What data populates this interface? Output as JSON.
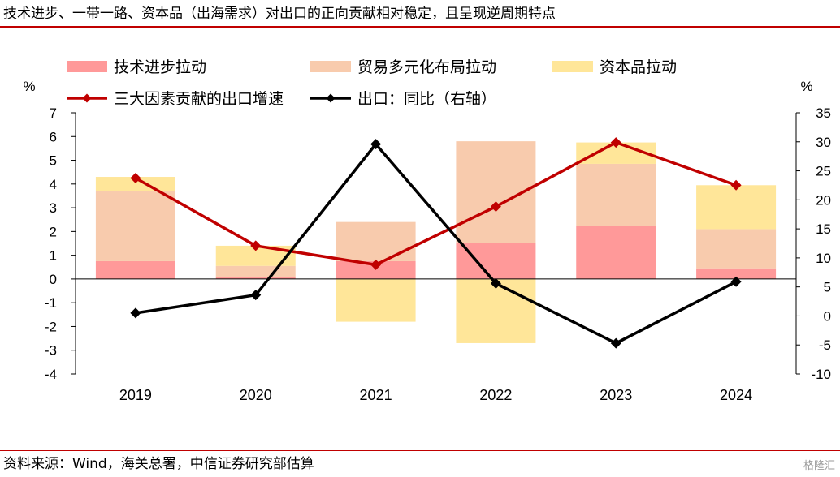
{
  "title": "技术进步、一带一路、资本品（出海需求）对出口的正向贡献相对稳定，且呈现逆周期特点",
  "source": "资料来源：Wind，海关总署，中信证券研究部估算",
  "watermark": "格隆汇",
  "chart_data": {
    "type": "bar",
    "categories": [
      "2019",
      "2020",
      "2021",
      "2022",
      "2023",
      "2024"
    ],
    "stacked": true,
    "series": [
      {
        "name": "技术进步拉动",
        "type": "bar",
        "axis": "left",
        "color": "#ff9999",
        "values": [
          0.75,
          0.1,
          0.75,
          1.5,
          2.25,
          0.45
        ]
      },
      {
        "name": "贸易多元化布局拉动",
        "type": "bar",
        "axis": "left",
        "color": "#f8cbad",
        "values": [
          2.95,
          0.45,
          1.65,
          4.3,
          2.6,
          1.65
        ]
      },
      {
        "name": "资本品拉动",
        "type": "bar",
        "axis": "left",
        "color": "#ffe699",
        "values": [
          0.6,
          0.85,
          -1.8,
          -2.7,
          0.9,
          1.85
        ]
      },
      {
        "name": "三大因素贡献的出口增速",
        "type": "line",
        "axis": "left",
        "color": "#c00000",
        "marker": "diamond",
        "values": [
          4.25,
          1.4,
          0.6,
          3.05,
          5.75,
          3.95
        ]
      },
      {
        "name": "出口：同比（右轴）",
        "type": "line",
        "axis": "right",
        "color": "#000000",
        "marker": "diamond",
        "values": [
          0.5,
          3.6,
          29.6,
          5.6,
          -4.7,
          5.9
        ]
      }
    ],
    "left_axis": {
      "unit": "%",
      "ylim": [
        -4,
        7
      ],
      "ticks": [
        "7",
        "6",
        "5",
        "4",
        "3",
        "2",
        "1",
        "0",
        "-1",
        "-2",
        "-3",
        "-4"
      ]
    },
    "right_axis": {
      "unit": "%",
      "ylim": [
        -10,
        35
      ],
      "ticks": [
        "35",
        "30",
        "25",
        "20",
        "15",
        "10",
        "5",
        "0",
        "-5",
        "-10"
      ]
    },
    "legend_position": "top",
    "grid": false
  }
}
